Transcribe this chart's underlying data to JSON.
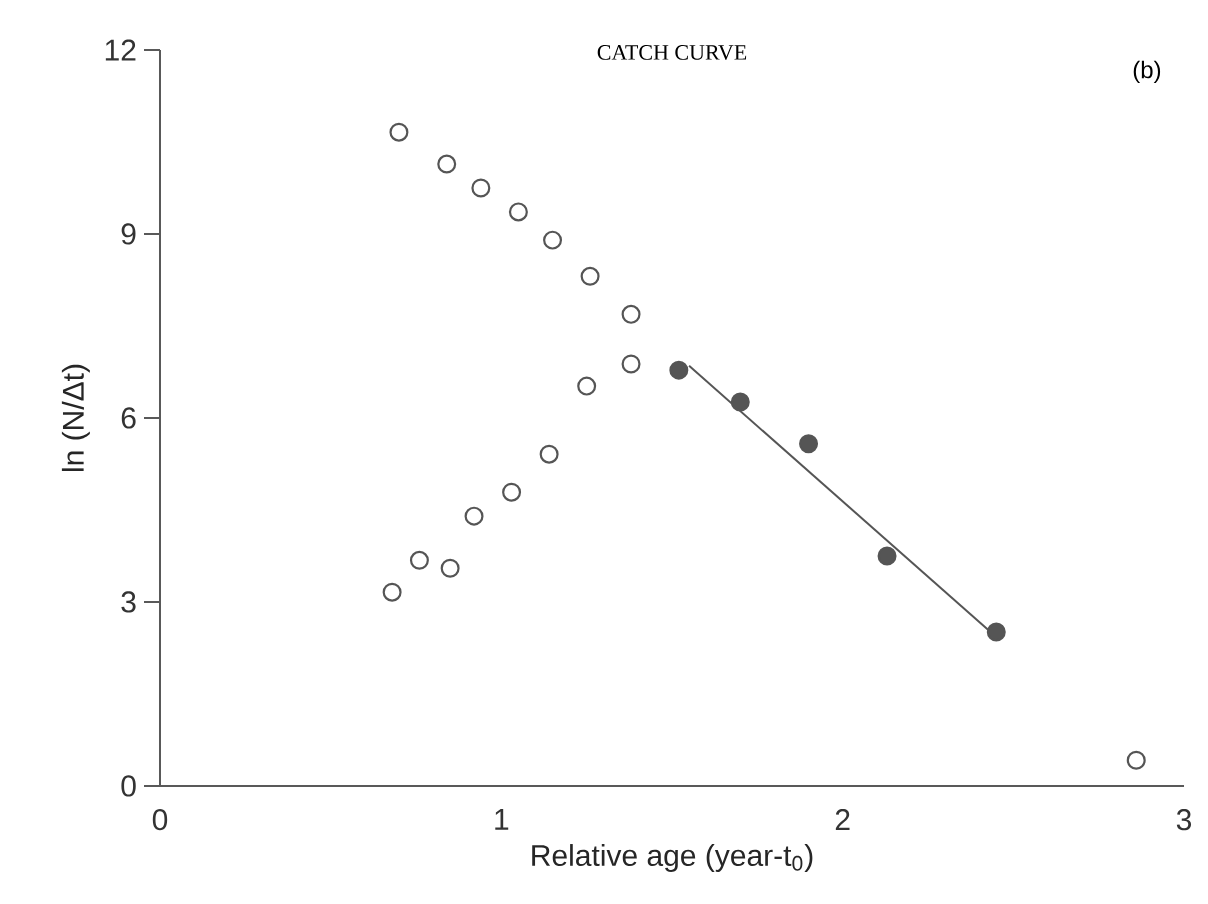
{
  "chart_data": {
    "type": "scatter",
    "title": "CATCH CURVE",
    "xlabel": "Relative age (year-t$_{0}$)",
    "ylabel": "ln (N/Δt)",
    "annotations": [
      "(b)"
    ],
    "xlim": [
      0,
      3
    ],
    "ylim": [
      0,
      12
    ],
    "xticks": [
      0,
      1,
      2,
      3
    ],
    "yticks": [
      0,
      3,
      6,
      9,
      12
    ],
    "grid": false,
    "marker": "circle",
    "series": [
      {
        "color": "#555555",
        "x": [
          0.7,
          0.84,
          0.94,
          1.05,
          1.15,
          1.26,
          1.38,
          1.38,
          1.25,
          1.14,
          1.03,
          0.92,
          0.85,
          0.76,
          0.68,
          2.86
        ],
        "values": [
          10.66,
          10.14,
          9.75,
          9.36,
          8.9,
          8.31,
          7.69,
          6.88,
          6.52,
          5.41,
          4.79,
          4.4,
          3.55,
          3.68,
          3.16,
          0.42
        ]
      },
      {
        "color": "#555555",
        "x": [
          1.52,
          1.7,
          1.9,
          2.13,
          2.45
        ],
        "values": [
          6.78,
          6.26,
          5.58,
          3.75,
          2.51
        ]
      },
      {
        "type": "line",
        "marker": "none",
        "color": "#555555",
        "x": [
          1.55,
          2.44
        ],
        "values": [
          6.85,
          2.48
        ]
      }
    ]
  }
}
